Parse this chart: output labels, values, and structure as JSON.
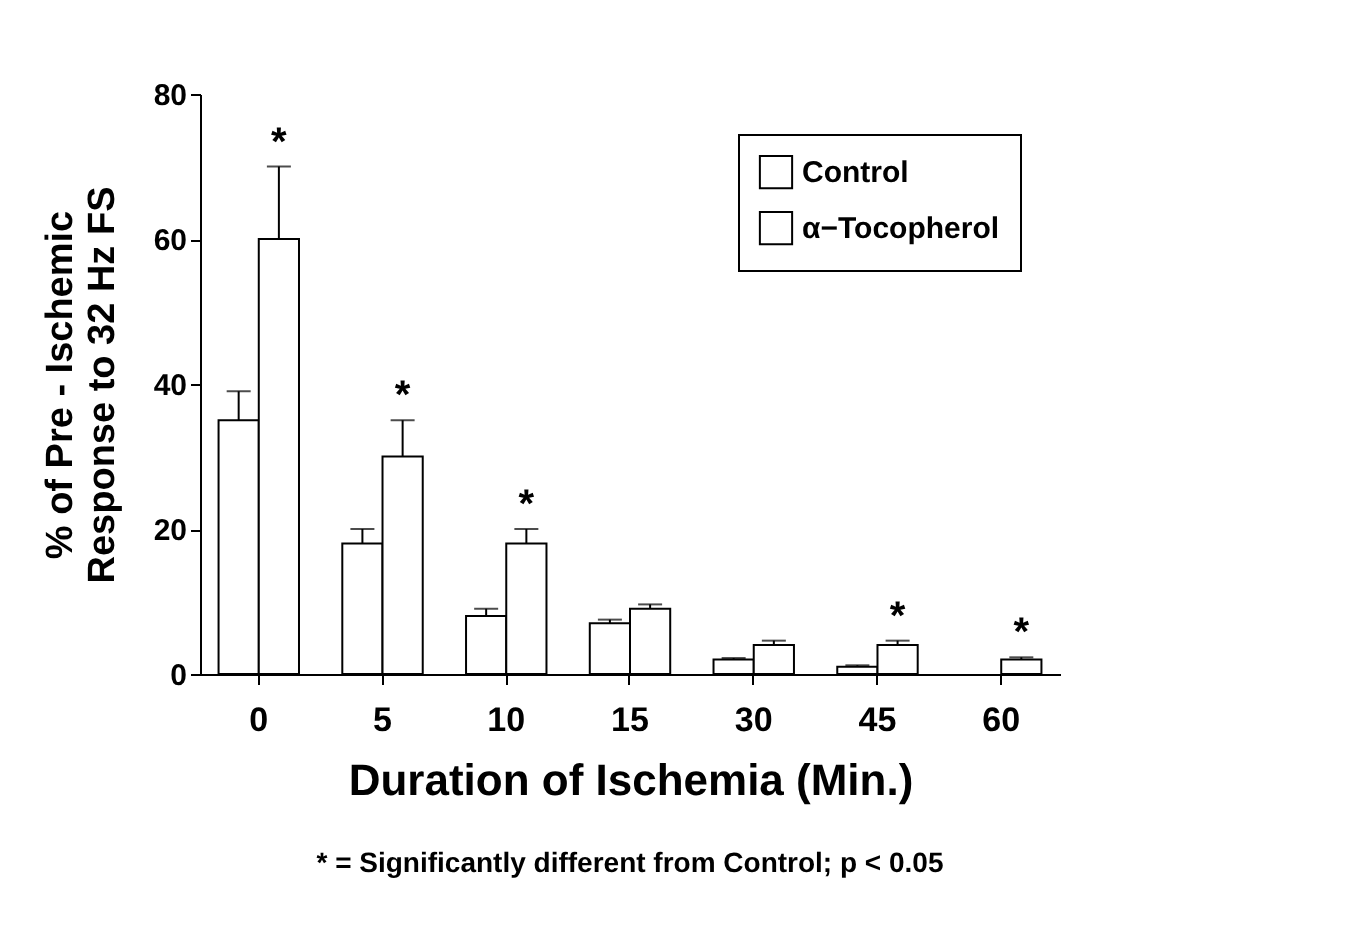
{
  "chart_data": {
    "type": "bar",
    "xlabel": "Duration of Ischemia (Min.)",
    "ylabel": "% of Pre - Ischemic\nResponse to 32 Hz FS",
    "categories": [
      "0",
      "5",
      "10",
      "15",
      "30",
      "45",
      "60"
    ],
    "series": [
      {
        "name": "Control",
        "color": "#ffffff",
        "values": [
          35,
          18,
          8,
          7,
          2,
          1,
          null
        ],
        "errors": [
          [
            35,
            39
          ],
          [
            18,
            20
          ],
          [
            8,
            9
          ],
          [
            7,
            7.5
          ],
          [
            2,
            2.2
          ],
          [
            1,
            1.2
          ],
          null
        ]
      },
      {
        "name": "α−Tocopherol",
        "color": "#ffffff",
        "values": [
          60,
          30,
          18,
          9,
          4,
          4,
          2
        ],
        "errors": [
          [
            60,
            70
          ],
          [
            30,
            35
          ],
          [
            18,
            20
          ],
          [
            9,
            9.6
          ],
          [
            4,
            4.6
          ],
          [
            4,
            4.6
          ],
          [
            2,
            2.3
          ]
        ]
      }
    ],
    "ylim": [
      0,
      80
    ],
    "yticks": [
      0,
      20,
      40,
      60,
      80
    ],
    "grid": false,
    "legend": "top right",
    "annotations": [
      {
        "text": "*",
        "x": "0",
        "y": 70
      },
      {
        "text": "*",
        "x": "5",
        "y": 35
      },
      {
        "text": "*",
        "x": "10",
        "y": 20
      },
      {
        "text": "*",
        "x": "45",
        "y": 4.6
      },
      {
        "text": "*",
        "x": "60",
        "y": 2.3
      },
      "* = Significantly different from Control; p < 0.05"
    ]
  }
}
